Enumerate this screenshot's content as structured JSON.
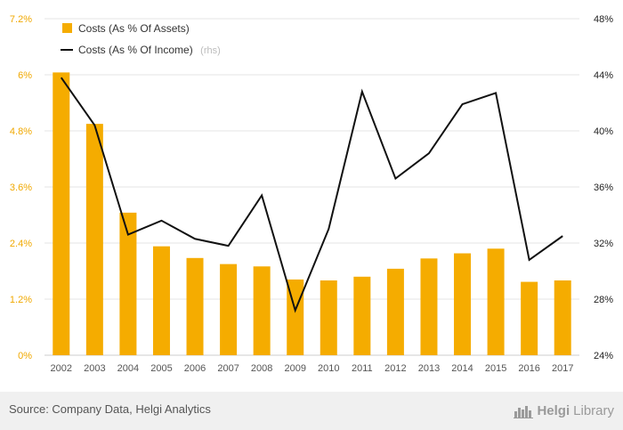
{
  "chart_data": {
    "type": "bar",
    "categories": [
      "2002",
      "2003",
      "2004",
      "2005",
      "2006",
      "2007",
      "2008",
      "2009",
      "2010",
      "2011",
      "2012",
      "2013",
      "2014",
      "2015",
      "2016",
      "2017"
    ],
    "series": [
      {
        "name": "Costs (As % Of Assets)",
        "type": "bar",
        "axis": "left",
        "color": "#f5ac00",
        "values": [
          6.05,
          4.95,
          3.05,
          2.33,
          2.08,
          1.95,
          1.9,
          1.62,
          1.6,
          1.68,
          1.85,
          2.07,
          2.18,
          2.28,
          1.57,
          1.6
        ]
      },
      {
        "name": "Costs (As % Of Income)",
        "suffix": "(rhs)",
        "type": "line",
        "axis": "right",
        "color": "#111111",
        "values": [
          43.8,
          40.4,
          32.6,
          33.6,
          32.3,
          31.8,
          35.4,
          27.2,
          33.0,
          42.8,
          36.6,
          38.4,
          41.9,
          42.7,
          30.8,
          32.5
        ]
      }
    ],
    "y_left": {
      "ylim": [
        0,
        7.2
      ],
      "ticks": [
        "0%",
        "1.2%",
        "2.4%",
        "3.6%",
        "4.8%",
        "6%",
        "7.2%"
      ],
      "tick_values": [
        0,
        1.2,
        2.4,
        3.6,
        4.8,
        6.0,
        7.2
      ]
    },
    "y_right": {
      "ylim": [
        24,
        48
      ],
      "ticks": [
        "24%",
        "28%",
        "32%",
        "36%",
        "40%",
        "44%",
        "48%"
      ],
      "tick_values": [
        24,
        28,
        32,
        36,
        40,
        44,
        48
      ]
    },
    "legend_position": "top-left",
    "grid": "horizontal"
  },
  "footer": {
    "source": "Source: Company Data, Helgi Analytics",
    "logo_bold": "Helgi",
    "logo_light": "Library"
  }
}
